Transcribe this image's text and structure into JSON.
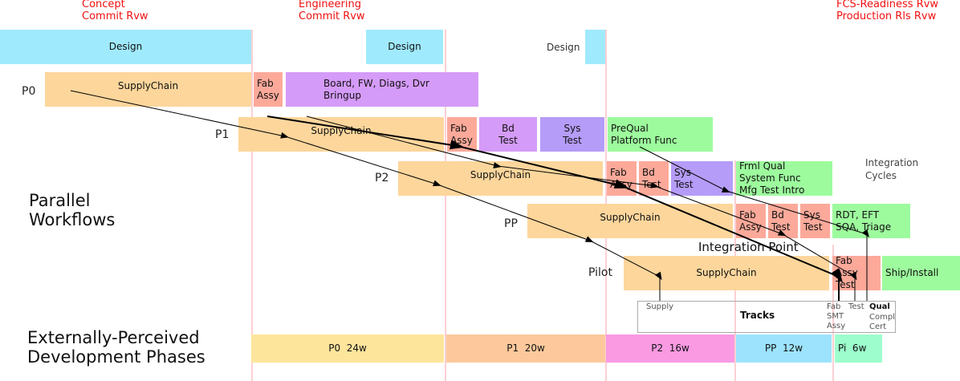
{
  "milestones": {
    "concept": "Concept\nCommit Rvw",
    "engineering": "Engineering\nCommit Rvw",
    "fcs": "FCS-Readiness Rvw\nProduction Rls Rvw"
  },
  "design": {
    "d1": "Design",
    "d2": "Design",
    "d3": "Design"
  },
  "rows": {
    "p0": {
      "label": "P0",
      "supply": "SupplyChain",
      "fab": "Fab\nAssy",
      "bringup": "Board, FW, Diags, Dvr\nBringup"
    },
    "p1": {
      "label": "P1",
      "supply": "SupplyChain",
      "fab": "Fab\nAssy",
      "bd": "Bd\nTest",
      "sys": "Sys\nTest",
      "qual": "PreQual\nPlatform Func"
    },
    "p2": {
      "label": "P2",
      "supply": "SupplyChain",
      "fab": "Fab\nAssy",
      "bd": "Bd\nTest",
      "sys": "Sys\nTest",
      "qual": "Frml Qual\nSystem Func\nMfg Test Intro"
    },
    "pp": {
      "label": "PP",
      "supply": "SupplyChain",
      "fab": "Fab\nAssy",
      "bd": "Bd\nTest",
      "sys": "Sys\nTest",
      "qual": "RDT, EFT\nSQA, Triage"
    },
    "pilot": {
      "label": "Pilot",
      "supply": "SupplyChain",
      "fab": "Fab\nAssy\nTest",
      "ship": "Ship/Install"
    }
  },
  "integration_cycles": "Integration\nCycles",
  "integration_point": "Integration Point",
  "parallel": "Parallel\nWorkflows",
  "external": "Externally-Perceived\nDevelopment Phases",
  "tracks": {
    "title": "Tracks",
    "supply": "Supply",
    "fab": "Fab\nSMT\nAssy",
    "test": "Test",
    "qual": "Qual",
    "qual2": "Compl\nCert"
  },
  "phases": [
    "P0  24w",
    "P1  20w",
    "P2  16w",
    "PP  12w",
    "Pi  6w"
  ],
  "colors": {
    "milestone": "#f01010",
    "design": "#a0eafd",
    "supply": "#fdd69c",
    "fab": "#fca99a",
    "green": "#9dfb9d"
  }
}
